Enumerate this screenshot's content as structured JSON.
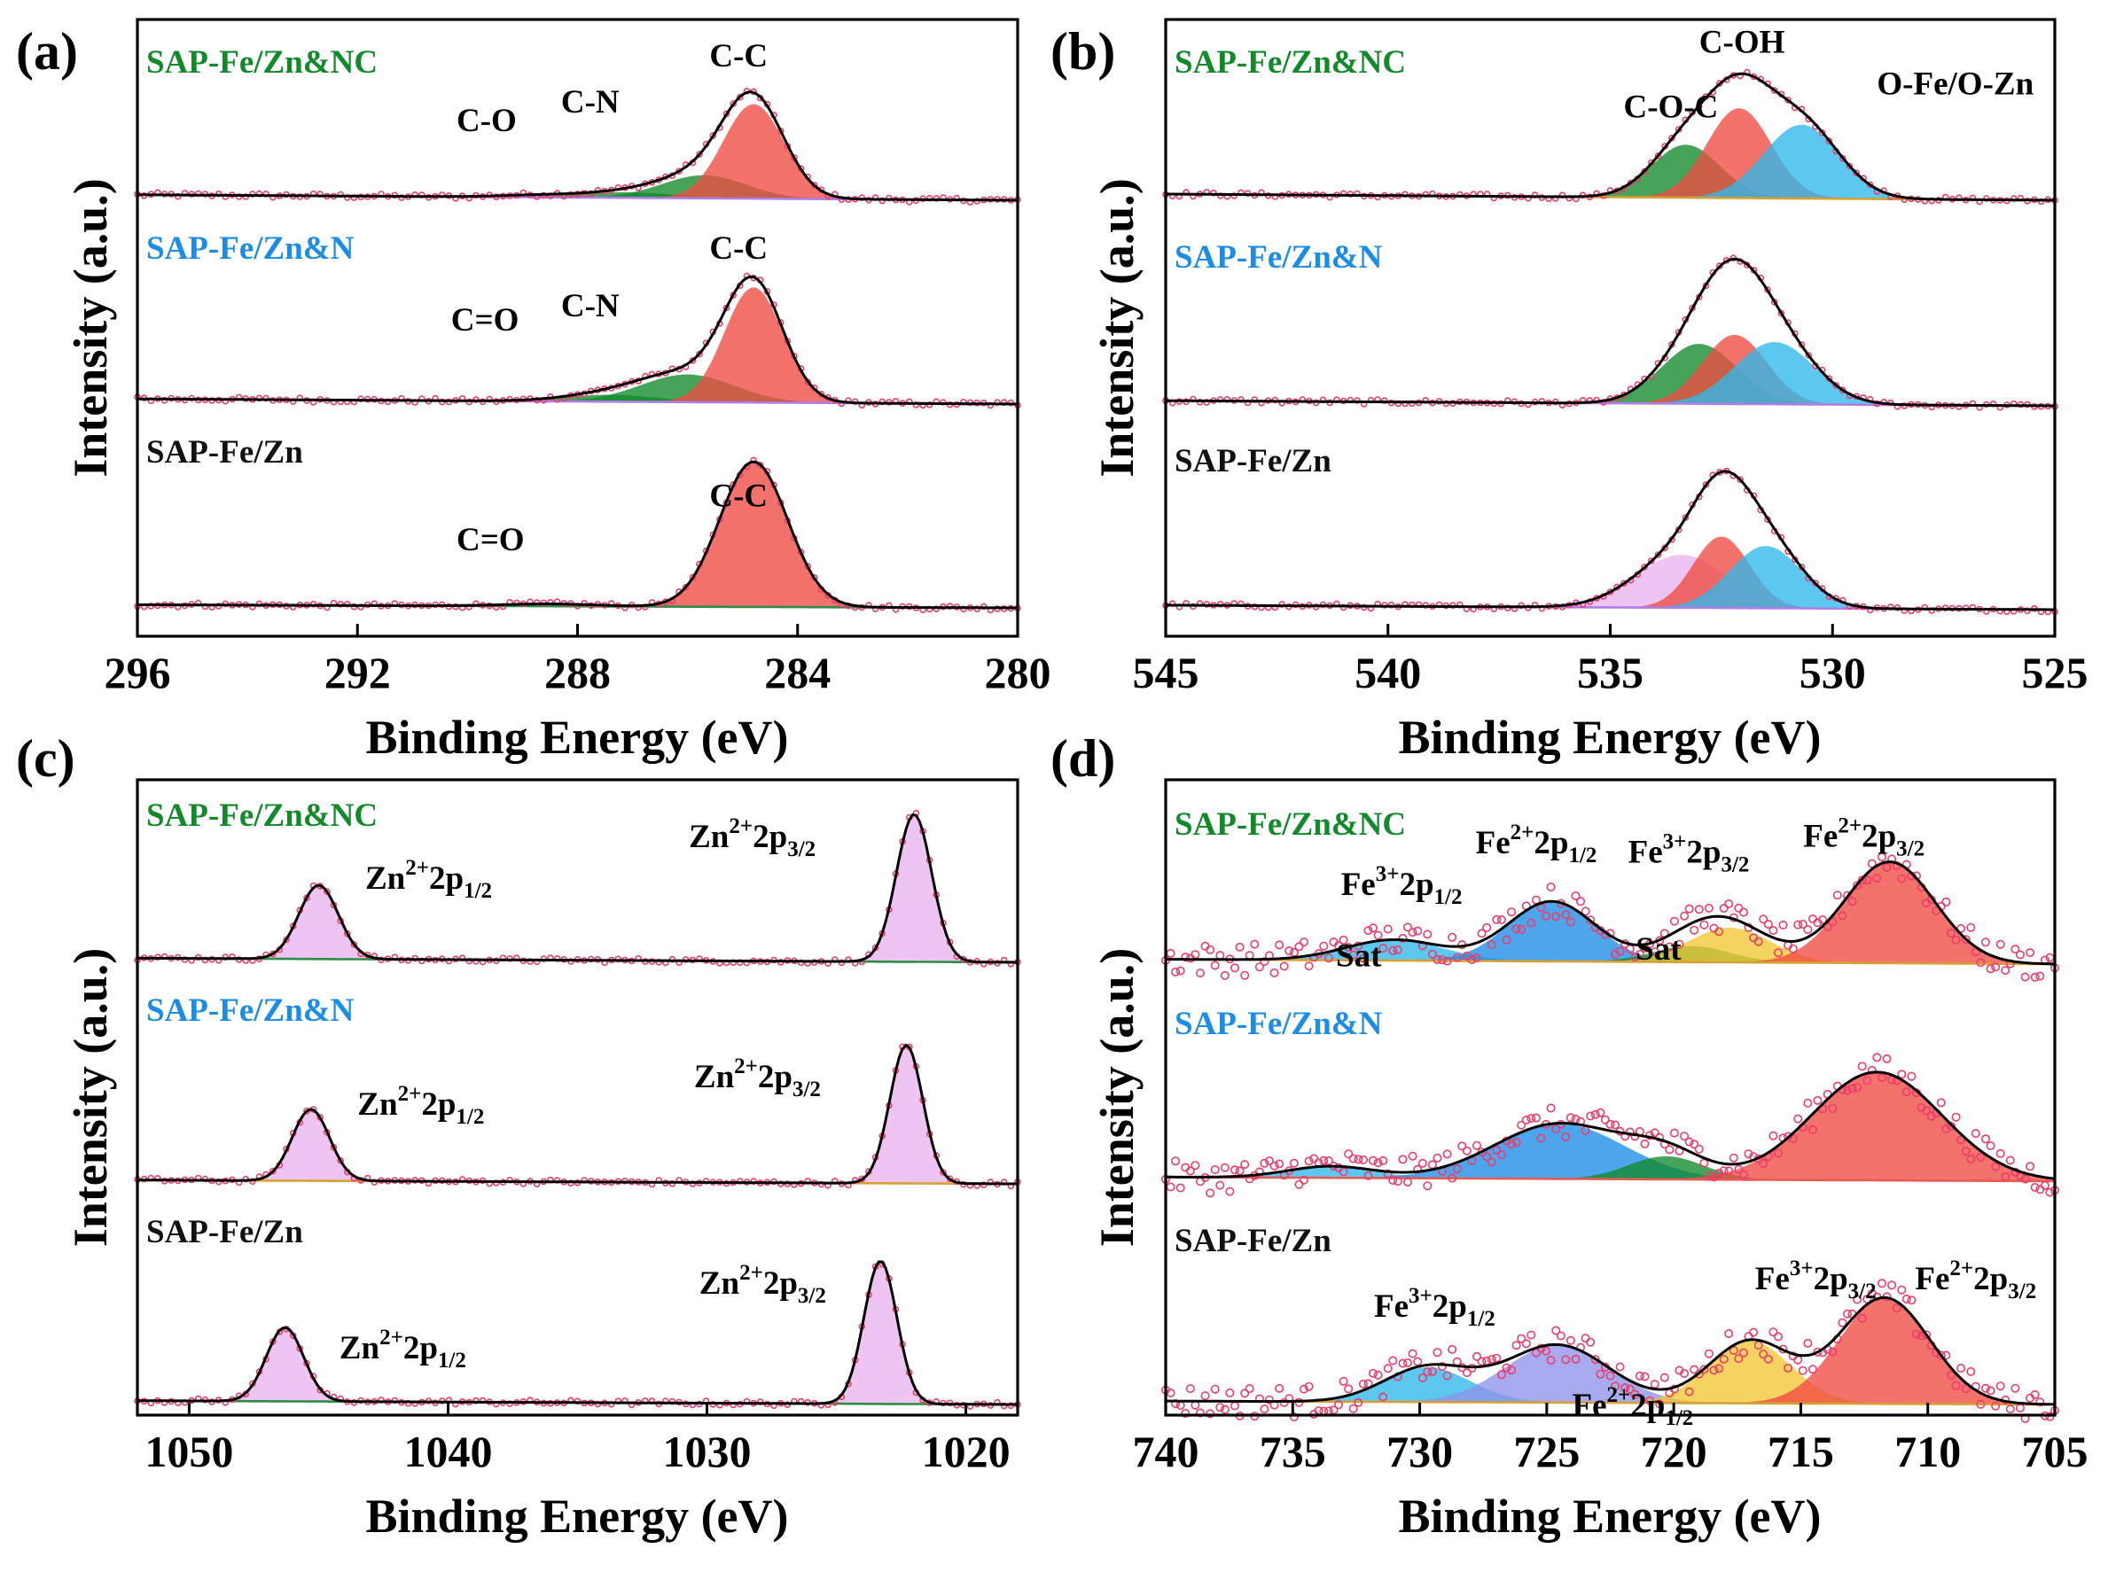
{
  "colors": {
    "green": "#118a2a",
    "blue": "#1b8de6",
    "black": "#111111",
    "red": "#ef4b43",
    "cyan": "#2fb9ea",
    "pink": "#e9b5ee",
    "yellow": "#f2c733",
    "periwinkle": "#8e94e8",
    "dots": "#ee3b6a",
    "bg_green": "#2e8b47",
    "bg_purple": "#b07de8",
    "bg_orange": "#d8a032",
    "bg_red": "#e85a54"
  },
  "chart_data": [
    {
      "type": "area",
      "panel": "(a)",
      "xlabel": "Binding Energy (eV)",
      "ylabel": "Intensity (a.u.)",
      "xlim": [
        296,
        280
      ],
      "xticks": [
        "296",
        "292",
        "288",
        "284",
        "280"
      ],
      "xtick_values": [
        296,
        292,
        288,
        284,
        280
      ],
      "series": [
        {
          "name": "SAP-Fe/Zn&NC",
          "color_key": "green",
          "baseline": 0.8,
          "bg_key": "bg_purple",
          "components": [
            {
              "label": "C-O",
              "center": 288.8,
              "height": 0.04,
              "fwhm": 1.6,
              "color_key": "blue"
            },
            {
              "label": "C-N",
              "center": 287.1,
              "height": 0.12,
              "fwhm": 2.0,
              "color_key": "green"
            },
            {
              "label": "",
              "center": 285.7,
              "height": 0.5,
              "fwhm": 1.8,
              "color_key": "green"
            },
            {
              "label": "C-C",
              "center": 284.8,
              "height": 2.05,
              "fwhm": 1.3,
              "color_key": "red"
            }
          ],
          "annotations": [
            {
              "text": "C-O",
              "at_x": 290.2,
              "at_y": 1.5
            },
            {
              "text": "C-N",
              "at_x": 288.3,
              "at_y": 1.9
            },
            {
              "text": "C-C",
              "at_x": 285.6,
              "at_y": 2.9
            }
          ]
        },
        {
          "name": "SAP-Fe/Zn&N",
          "color_key": "blue",
          "baseline": 0.75,
          "bg_key": "bg_purple",
          "components": [
            {
              "label": "C=O",
              "center": 287.4,
              "height": 0.15,
              "fwhm": 2.0,
              "color_key": "green"
            },
            {
              "label": "C-N",
              "center": 286.0,
              "height": 0.6,
              "fwhm": 2.0,
              "color_key": "green"
            },
            {
              "label": "C-C",
              "center": 284.8,
              "height": 2.5,
              "fwhm": 1.25,
              "color_key": "red"
            }
          ],
          "annotations": [
            {
              "text": "C=O",
              "at_x": 290.3,
              "at_y": 1.6
            },
            {
              "text": "C-N",
              "at_x": 288.3,
              "at_y": 1.9
            },
            {
              "text": "C-C",
              "at_x": 285.6,
              "at_y": 3.15
            }
          ]
        },
        {
          "name": "SAP-Fe/Zn",
          "color_key": "black",
          "baseline": 0.45,
          "bg_key": "bg_green",
          "components": [
            {
              "label": "C=O",
              "center": 288.5,
              "height": 0.05,
              "fwhm": 2.0,
              "color_key": "green"
            },
            {
              "label": "C-C",
              "center": 284.8,
              "height": 3.15,
              "fwhm": 1.45,
              "color_key": "red"
            }
          ],
          "annotations": [
            {
              "text": "C=O",
              "at_x": 290.2,
              "at_y": 1.25
            },
            {
              "text": "C-C",
              "at_x": 285.6,
              "at_y": 2.2
            }
          ]
        }
      ]
    },
    {
      "type": "area",
      "panel": "(b)",
      "xlabel": "Binding Energy (eV)",
      "ylabel": "Intensity (a.u.)",
      "xlim": [
        545,
        525
      ],
      "xticks": [
        "545",
        "540",
        "535",
        "530",
        "525"
      ],
      "xtick_values": [
        545,
        540,
        535,
        530,
        525
      ],
      "series": [
        {
          "name": "SAP-Fe/Zn&NC",
          "color_key": "green",
          "baseline": 0.9,
          "bg_key": "bg_orange",
          "components": [
            {
              "label": "C-O-C",
              "center": 533.3,
              "height": 1.15,
              "fwhm": 1.8,
              "color_key": "green"
            },
            {
              "label": "C-OH",
              "center": 532.1,
              "height": 1.95,
              "fwhm": 1.7,
              "color_key": "red"
            },
            {
              "label": "O-Fe/O-Zn",
              "center": 530.7,
              "height": 1.6,
              "fwhm": 2.0,
              "color_key": "cyan"
            }
          ],
          "annotations": [
            {
              "text": "C-OH",
              "at_x": 533.0,
              "at_y": 3.2
            },
            {
              "text": "C-O-C",
              "at_x": 534.7,
              "at_y": 1.8
            },
            {
              "text": "O-Fe/O-Zn",
              "at_x": 529.0,
              "at_y": 2.3
            }
          ]
        },
        {
          "name": "SAP-Fe/Zn&N",
          "color_key": "blue",
          "baseline": 0.75,
          "bg_key": "bg_purple",
          "components": [
            {
              "label": "",
              "center": 533.0,
              "height": 1.3,
              "fwhm": 2.0,
              "color_key": "green"
            },
            {
              "label": "",
              "center": 532.2,
              "height": 1.5,
              "fwhm": 1.7,
              "color_key": "red"
            },
            {
              "label": "",
              "center": 531.3,
              "height": 1.35,
              "fwhm": 2.1,
              "color_key": "cyan"
            }
          ],
          "annotations": []
        },
        {
          "name": "SAP-Fe/Zn",
          "color_key": "black",
          "baseline": 0.65,
          "bg_key": "bg_purple",
          "components": [
            {
              "label": "",
              "center": 533.4,
              "height": 1.15,
              "fwhm": 2.4,
              "color_key": "pink"
            },
            {
              "label": "",
              "center": 532.5,
              "height": 1.55,
              "fwhm": 1.5,
              "color_key": "red"
            },
            {
              "label": "",
              "center": 531.5,
              "height": 1.35,
              "fwhm": 1.9,
              "color_key": "cyan"
            }
          ],
          "annotations": []
        }
      ]
    },
    {
      "type": "area",
      "panel": "(c)",
      "xlabel": "Binding Energy (eV)",
      "ylabel": "Intensity (a.u.)",
      "xlim": [
        1052,
        1018
      ],
      "xticks": [
        "1050",
        "1040",
        "1030",
        "1020"
      ],
      "xtick_values": [
        1050,
        1040,
        1030,
        1020
      ],
      "series": [
        {
          "name": "SAP-Fe/Zn&NC",
          "color_key": "green",
          "baseline": 0.6,
          "bg_key": "bg_green",
          "components": [
            {
              "label": "Zn²⁺2p1/2",
              "center": 1045.0,
              "height": 1.6,
              "fwhm": 1.8,
              "color_key": "pink"
            },
            {
              "label": "Zn²⁺2p3/2",
              "center": 1022.0,
              "height": 3.2,
              "fwhm": 1.6,
              "color_key": "pink"
            }
          ],
          "annotations": [
            {
              "label": "Zn",
              "sup": "2+",
              "body": "2p",
              "sub": "1/2",
              "at_x": 1043.2,
              "at_y": 1.6
            },
            {
              "label": "Zn",
              "sup": "2+",
              "body": "2p",
              "sub": "3/2",
              "at_x": 1030.7,
              "at_y": 2.5
            }
          ]
        },
        {
          "name": "SAP-Fe/Zn&N",
          "color_key": "blue",
          "baseline": 0.55,
          "bg_key": "bg_orange",
          "components": [
            {
              "label": "Zn²⁺2p1/2",
              "center": 1045.3,
              "height": 1.55,
              "fwhm": 1.7,
              "color_key": "pink"
            },
            {
              "label": "Zn²⁺2p3/2",
              "center": 1022.3,
              "height": 3.0,
              "fwhm": 1.5,
              "color_key": "pink"
            }
          ],
          "annotations": [
            {
              "label": "Zn",
              "sup": "2+",
              "body": "2p",
              "sub": "1/2",
              "at_x": 1043.5,
              "at_y": 1.5
            },
            {
              "label": "Zn",
              "sup": "2+",
              "body": "2p",
              "sub": "3/2",
              "at_x": 1030.5,
              "at_y": 2.1
            }
          ]
        },
        {
          "name": "SAP-Fe/Zn",
          "color_key": "black",
          "baseline": 0.55,
          "bg_key": "bg_green",
          "components": [
            {
              "label": "Zn²⁺2p1/2",
              "center": 1046.3,
              "height": 1.6,
              "fwhm": 1.7,
              "color_key": "pink"
            },
            {
              "label": "Zn²⁺2p3/2",
              "center": 1023.3,
              "height": 3.1,
              "fwhm": 1.5,
              "color_key": "pink"
            }
          ],
          "annotations": [
            {
              "label": "Zn",
              "sup": "2+",
              "body": "2p",
              "sub": "1/2",
              "at_x": 1044.2,
              "at_y": 1.0
            },
            {
              "label": "Zn",
              "sup": "2+",
              "body": "2p",
              "sub": "3/2",
              "at_x": 1030.3,
              "at_y": 2.4
            }
          ]
        }
      ]
    },
    {
      "type": "area",
      "panel": "(d)",
      "xlabel": "Binding Energy (eV)",
      "ylabel": "Intensity (a.u.)",
      "xlim": [
        740,
        705
      ],
      "xticks": [
        "740",
        "735",
        "730",
        "725",
        "720",
        "715",
        "710",
        "705"
      ],
      "xtick_values": [
        740,
        735,
        730,
        725,
        720,
        715,
        710,
        705
      ],
      "series": [
        {
          "name": "SAP-Fe/Zn&NC",
          "color_key": "green",
          "baseline": 0.7,
          "bg_key": "bg_orange",
          "components": [
            {
              "label": "Sat",
              "center": 731.0,
              "height": 0.45,
              "fwhm": 4.5,
              "color_key": "cyan"
            },
            {
              "label": "Fe²⁺2p1/2",
              "center": 724.8,
              "height": 1.3,
              "fwhm": 4.0,
              "color_key": "blue"
            },
            {
              "label": "Sat",
              "center": 719.3,
              "height": 0.35,
              "fwhm": 3.5,
              "color_key": "green"
            },
            {
              "label": "Fe³⁺2p3/2",
              "center": 717.8,
              "height": 0.75,
              "fwhm": 3.8,
              "color_key": "yellow"
            },
            {
              "label": "Fe²⁺2p3/2",
              "center": 711.5,
              "height": 2.2,
              "fwhm": 4.2,
              "color_key": "red"
            }
          ],
          "annotations": [
            {
              "label": "Fe",
              "sup": "2+",
              "body": "2p",
              "sub": "1/2",
              "at_x": 727.8,
              "at_y": 2.4
            },
            {
              "label": "Fe",
              "sup": "3+",
              "body": "2p",
              "sub": "3/2",
              "at_x": 721.8,
              "at_y": 2.2
            },
            {
              "label": "Fe",
              "sup": "2+",
              "body": "2p",
              "sub": "3/2",
              "at_x": 714.9,
              "at_y": 2.55
            },
            {
              "label": "Fe",
              "sup": "3+",
              "body": "2p",
              "sub": "1/2",
              "at_x": 733.1,
              "at_y": 1.5
            },
            {
              "label": "Sat",
              "at_x": 733.3,
              "at_y": -0.05
            },
            {
              "label": "Sat",
              "at_x": 721.5,
              "at_y": 0.1
            }
          ]
        },
        {
          "name": "SAP-Fe/Zn&N",
          "color_key": "blue",
          "baseline": 0.6,
          "bg_key": "bg_red",
          "components": [
            {
              "label": "",
              "center": 733.5,
              "height": 0.25,
              "fwhm": 4.0,
              "color_key": "cyan"
            },
            {
              "label": "",
              "center": 724.5,
              "height": 1.2,
              "fwhm": 6.0,
              "color_key": "blue"
            },
            {
              "label": "",
              "center": 720.3,
              "height": 0.5,
              "fwhm": 3.5,
              "color_key": "green"
            },
            {
              "label": "",
              "center": 712.0,
              "height": 2.35,
              "fwhm": 6.0,
              "color_key": "red"
            }
          ],
          "annotations": []
        },
        {
          "name": "SAP-Fe/Zn",
          "color_key": "black",
          "baseline": 0.5,
          "bg_key": "bg_orange",
          "components": [
            {
              "label": "Fe³⁺2p1/2",
              "center": 729.7,
              "height": 0.75,
              "fwhm": 4.0,
              "color_key": "cyan"
            },
            {
              "label": "Fe²⁺2p1/2",
              "center": 724.6,
              "height": 1.25,
              "fwhm": 4.8,
              "color_key": "periwinkle"
            },
            {
              "label": "Fe³⁺2p3/2",
              "center": 717.0,
              "height": 1.35,
              "fwhm": 3.8,
              "color_key": "yellow"
            },
            {
              "label": "Fe²⁺2p3/2",
              "center": 711.7,
              "height": 2.3,
              "fwhm": 4.2,
              "color_key": "red"
            }
          ],
          "annotations": [
            {
              "label": "Fe",
              "sup": "3+",
              "body": "2p",
              "sub": "1/2",
              "at_x": 731.8,
              "at_y": 1.9
            },
            {
              "label": "Fe",
              "sup": "2+",
              "body": "2p",
              "sub": "1/2",
              "at_x": 724.0,
              "at_y": -0.25
            },
            {
              "label": "Fe",
              "sup": "3+",
              "body": "2p",
              "sub": "3/2",
              "at_x": 716.8,
              "at_y": 2.5
            },
            {
              "label": "Fe",
              "sup": "2+",
              "body": "2p",
              "sub": "3/2",
              "at_x": 710.5,
              "at_y": 2.5
            }
          ]
        }
      ]
    }
  ]
}
